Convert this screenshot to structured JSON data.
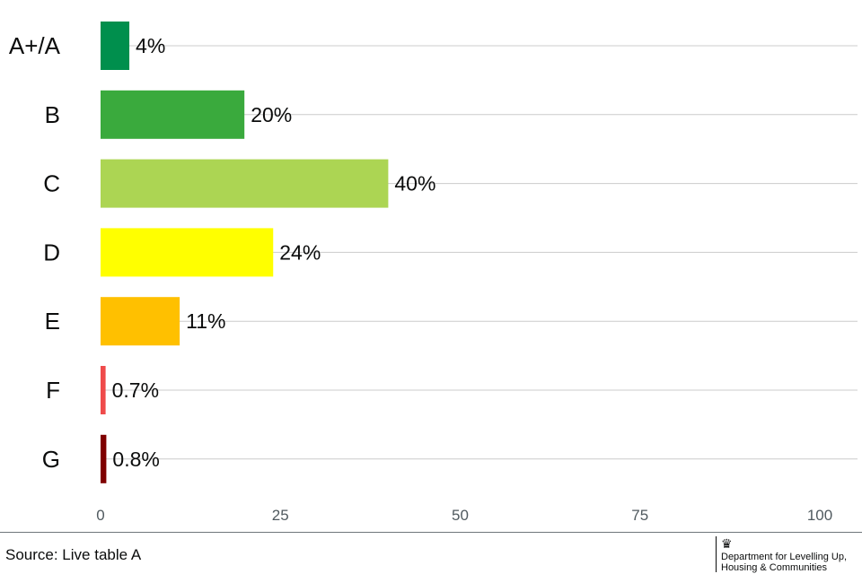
{
  "chart_data": {
    "type": "bar",
    "orientation": "horizontal",
    "categories": [
      "A+/A",
      "B",
      "C",
      "D",
      "E",
      "F",
      "G"
    ],
    "values": [
      4,
      20,
      40,
      24,
      11,
      0.7,
      0.8
    ],
    "data_labels": [
      "4%",
      "20%",
      "40%",
      "24%",
      "11%",
      "0.7%",
      "0.8%"
    ],
    "colors": [
      "#008f4d",
      "#3aaa3d",
      "#acd553",
      "#ffff00",
      "#ffc000",
      "#ef4b4b",
      "#7f0000"
    ],
    "xlim": [
      0,
      100
    ],
    "xticks": [
      0,
      25,
      50,
      75,
      100
    ],
    "xtick_labels": [
      "0",
      "25",
      "50",
      "75",
      "100"
    ],
    "grid": "horizontal lines at each category",
    "legend": "none"
  },
  "footer": {
    "source": "Source: Live table A",
    "org_line1": "Department for Levelling Up,",
    "org_line2": "Housing & Communities",
    "crest_icon": "royal-crest-icon"
  }
}
